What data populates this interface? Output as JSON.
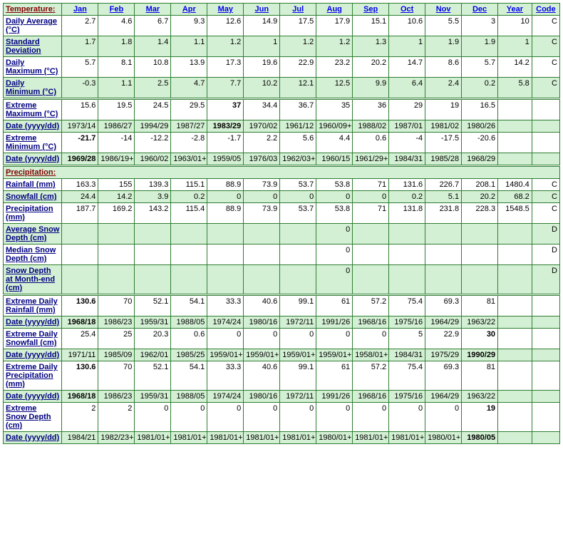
{
  "headers": [
    "Jan",
    "Feb",
    "Mar",
    "Apr",
    "May",
    "Jun",
    "Jul",
    "Aug",
    "Sep",
    "Oct",
    "Nov",
    "Dec",
    "Year",
    "Code"
  ],
  "sections": [
    {
      "title": "Temperature:",
      "rows": [
        {
          "label": "Daily Average (°C)",
          "cls": "white",
          "cells": [
            "2.7",
            "4.6",
            "6.7",
            "9.3",
            "12.6",
            "14.9",
            "17.5",
            "17.9",
            "15.1",
            "10.6",
            "5.5",
            "3",
            "10",
            "C"
          ]
        },
        {
          "label": "Standard Deviation",
          "cls": "green",
          "cells": [
            "1.7",
            "1.8",
            "1.4",
            "1.1",
            "1.2",
            "1",
            "1.2",
            "1.2",
            "1.3",
            "1",
            "1.9",
            "1.9",
            "1",
            "C"
          ]
        },
        {
          "label": "Daily Maximum (°C)",
          "cls": "white",
          "cells": [
            "5.7",
            "8.1",
            "10.8",
            "13.9",
            "17.3",
            "19.6",
            "22.9",
            "23.2",
            "20.2",
            "14.7",
            "8.6",
            "5.7",
            "14.2",
            "C"
          ]
        },
        {
          "label": "Daily Minimum (°C)",
          "cls": "green",
          "cells": [
            "-0.3",
            "1.1",
            "2.5",
            "4.7",
            "7.7",
            "10.2",
            "12.1",
            "12.5",
            "9.9",
            "6.4",
            "2.4",
            "0.2",
            "5.8",
            "C"
          ]
        },
        {
          "label": "Extreme Maximum (°C)",
          "cls": "white",
          "dbl": true,
          "cells": [
            "15.6",
            "19.5",
            "24.5",
            "29.5",
            "37",
            "34.4",
            "36.7",
            "35",
            "36",
            "29",
            "19",
            "16.5",
            "",
            ""
          ],
          "bold": [
            4
          ]
        },
        {
          "label": "Date (yyyy/dd)",
          "cls": "green",
          "cells": [
            "1973/14",
            "1986/27",
            "1994/29",
            "1987/27",
            "1983/29",
            "1970/02",
            "1961/12",
            "1960/09+",
            "1988/02",
            "1987/01",
            "1981/02",
            "1980/26",
            "",
            ""
          ],
          "bold": [
            4
          ]
        },
        {
          "label": "Extreme Minimum (°C)",
          "cls": "white",
          "cells": [
            "-21.7",
            "-14",
            "-12.2",
            "-2.8",
            "-1.7",
            "2.2",
            "5.6",
            "4.4",
            "0.6",
            "-4",
            "-17.5",
            "-20.6",
            "",
            ""
          ],
          "bold": [
            0
          ]
        },
        {
          "label": "Date (yyyy/dd)",
          "cls": "green",
          "cells": [
            "1969/28",
            "1986/19+",
            "1960/02",
            "1963/01+",
            "1959/05",
            "1976/03",
            "1962/03+",
            "1960/15",
            "1961/29+",
            "1984/31",
            "1985/28",
            "1968/29",
            "",
            ""
          ],
          "bold": [
            0
          ]
        }
      ]
    },
    {
      "title": "Precipitation:",
      "rows": [
        {
          "label": "Rainfall (mm)",
          "cls": "white",
          "cells": [
            "163.3",
            "155",
            "139.3",
            "115.1",
            "88.9",
            "73.9",
            "53.7",
            "53.8",
            "71",
            "131.6",
            "226.7",
            "208.1",
            "1480.4",
            "C"
          ]
        },
        {
          "label": "Snowfall (cm)",
          "cls": "green",
          "cells": [
            "24.4",
            "14.2",
            "3.9",
            "0.2",
            "0",
            "0",
            "0",
            "0",
            "0",
            "0.2",
            "5.1",
            "20.2",
            "68.2",
            "C"
          ]
        },
        {
          "label": "Precipitation (mm)",
          "cls": "white",
          "cells": [
            "187.7",
            "169.2",
            "143.2",
            "115.4",
            "88.9",
            "73.9",
            "53.7",
            "53.8",
            "71",
            "131.8",
            "231.8",
            "228.3",
            "1548.5",
            "C"
          ]
        },
        {
          "label": "Average Snow Depth (cm)",
          "cls": "green",
          "cells": [
            "",
            "",
            "",
            "",
            "",
            "",
            "",
            "0",
            "",
            "",
            "",
            "",
            "",
            "D"
          ]
        },
        {
          "label": "Median Snow Depth (cm)",
          "cls": "white",
          "cells": [
            "",
            "",
            "",
            "",
            "",
            "",
            "",
            "0",
            "",
            "",
            "",
            "",
            "",
            "D"
          ]
        },
        {
          "label": "Snow Depth at Month-end (cm)",
          "cls": "green",
          "cells": [
            "",
            "",
            "",
            "",
            "",
            "",
            "",
            "0",
            "",
            "",
            "",
            "",
            "",
            "D"
          ]
        },
        {
          "label": "Extreme Daily Rainfall (mm)",
          "cls": "white",
          "dbl": true,
          "cells": [
            "130.6",
            "70",
            "52.1",
            "54.1",
            "33.3",
            "40.6",
            "99.1",
            "61",
            "57.2",
            "75.4",
            "69.3",
            "81",
            "",
            ""
          ],
          "bold": [
            0
          ]
        },
        {
          "label": "Date (yyyy/dd)",
          "cls": "green",
          "cells": [
            "1968/18",
            "1986/23",
            "1959/31",
            "1988/05",
            "1974/24",
            "1980/16",
            "1972/11",
            "1991/26",
            "1968/16",
            "1975/16",
            "1964/29",
            "1963/22",
            "",
            ""
          ],
          "bold": [
            0
          ]
        },
        {
          "label": "Extreme Daily Snowfall (cm)",
          "cls": "white",
          "cells": [
            "25.4",
            "25",
            "20.3",
            "0.6",
            "0",
            "0",
            "0",
            "0",
            "0",
            "5",
            "22.9",
            "30",
            "",
            ""
          ],
          "bold": [
            11
          ]
        },
        {
          "label": "Date (yyyy/dd)",
          "cls": "green",
          "cells": [
            "1971/11",
            "1985/09",
            "1962/01",
            "1985/25",
            "1959/01+",
            "1959/01+",
            "1959/01+",
            "1959/01+",
            "1958/01+",
            "1984/31",
            "1975/29",
            "1990/29",
            "",
            ""
          ],
          "bold": [
            11
          ]
        },
        {
          "label": "Extreme Daily Precipitation (mm)",
          "cls": "white",
          "cells": [
            "130.6",
            "70",
            "52.1",
            "54.1",
            "33.3",
            "40.6",
            "99.1",
            "61",
            "57.2",
            "75.4",
            "69.3",
            "81",
            "",
            ""
          ],
          "bold": [
            0
          ]
        },
        {
          "label": "Date (yyyy/dd)",
          "cls": "green",
          "cells": [
            "1968/18",
            "1986/23",
            "1959/31",
            "1988/05",
            "1974/24",
            "1980/16",
            "1972/11",
            "1991/26",
            "1968/16",
            "1975/16",
            "1964/29",
            "1963/22",
            "",
            ""
          ],
          "bold": [
            0
          ]
        },
        {
          "label": "Extreme Snow Depth (cm)",
          "cls": "white",
          "cells": [
            "2",
            "2",
            "0",
            "0",
            "0",
            "0",
            "0",
            "0",
            "0",
            "0",
            "0",
            "19",
            "",
            ""
          ],
          "bold": [
            11
          ]
        },
        {
          "label": "Date (yyyy/dd)",
          "cls": "green",
          "cells": [
            "1984/21",
            "1982/23+",
            "1981/01+",
            "1981/01+",
            "1981/01+",
            "1981/01+",
            "1981/01+",
            "1980/01+",
            "1981/01+",
            "1981/01+",
            "1980/01+",
            "1980/05",
            "",
            ""
          ],
          "bold": [
            11
          ]
        }
      ]
    }
  ]
}
